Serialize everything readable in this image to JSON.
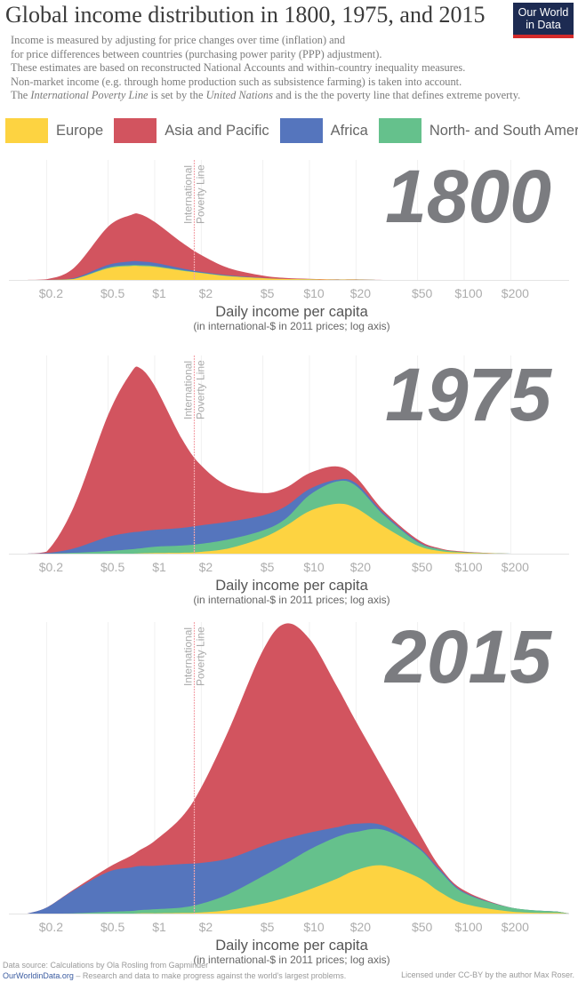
{
  "header": {
    "title": "Global income distribution in 1800, 1975, and 2015",
    "logo_line1": "Our World",
    "logo_line2": "in Data",
    "subtitle_lines": [
      "Income is measured by adjusting for price changes over time (inflation) and",
      "for price differences between countries (purchasing power parity (PPP) adjustment).",
      "These estimates are based on reconstructed National Accounts and within-country inequality measures.",
      "Non-market income (e.g. through home production such as subsistence farming) is taken into account."
    ],
    "subtitle_last": {
      "p1": "The ",
      "i1": "International Poverty Line",
      "p2": " is set by the ",
      "i2": "United Nations",
      "p3": " and is the the poverty line that defines extreme poverty."
    }
  },
  "legend": [
    {
      "label": "Europe",
      "color": "#fdd341"
    },
    {
      "label": "Asia and Pacific",
      "color": "#d2545f"
    },
    {
      "label": "Africa",
      "color": "#5575bd"
    },
    {
      "label": "North- and South America",
      "color": "#65c18c"
    }
  ],
  "footer": {
    "source": "Data source: Calculations by Ola Rosling from Gapminder",
    "site": "OurWorldinData.org",
    "tagline": " – Research and data to make progress against the world's largest problems.",
    "license": "Licensed under CC-BY by the author Max Roser."
  },
  "chart_data": [
    {
      "type": "area",
      "stacked": true,
      "title": "1800",
      "xlabel": "Daily income per capita",
      "xsubtitle": "(in international-$ in 2011 prices; log axis)",
      "xscale": "log",
      "xticks": [
        0.2,
        0.5,
        1,
        2,
        5,
        10,
        20,
        50,
        100,
        200
      ],
      "xtick_labels": [
        "$0.2",
        "$0.5",
        "$1",
        "$2",
        "$5",
        "$10",
        "$20",
        "$50",
        "$100",
        "$200"
      ],
      "poverty_line": {
        "x": 1.9,
        "label_line1": "International",
        "label_line2": "Poverty Line"
      },
      "x": [
        0.15,
        0.2,
        0.3,
        0.5,
        0.7,
        0.8,
        1,
        1.5,
        2,
        3,
        5,
        7,
        10,
        15,
        20,
        30,
        50,
        70,
        100,
        200,
        400
      ],
      "series": [
        {
          "name": "Europe",
          "values": [
            0,
            0,
            0.3,
            4.0,
            4.8,
            4.8,
            4.5,
            3.2,
            2.4,
            1.3,
            0.6,
            0.3,
            0.2,
            0.1,
            0.1,
            0,
            0,
            0,
            0,
            0,
            0
          ]
        },
        {
          "name": "North- and South America",
          "values": [
            0,
            0,
            0.1,
            0.3,
            0.3,
            0.3,
            0.3,
            0.2,
            0.1,
            0.1,
            0,
            0,
            0,
            0,
            0,
            0,
            0,
            0,
            0,
            0,
            0
          ]
        },
        {
          "name": "Africa",
          "values": [
            0,
            0,
            0.2,
            0.9,
            1.3,
            1.3,
            1.1,
            0.6,
            0.3,
            0.2,
            0.1,
            0,
            0,
            0,
            0,
            0,
            0,
            0,
            0,
            0,
            0
          ]
        },
        {
          "name": "Asia and Pacific",
          "values": [
            0,
            0.2,
            3.5,
            13.2,
            16.0,
            16.3,
            14.1,
            8.9,
            5.8,
            2.5,
            0.8,
            0.4,
            0.2,
            0.1,
            0.1,
            0,
            0,
            0,
            0,
            0,
            0
          ]
        }
      ]
    },
    {
      "type": "area",
      "stacked": true,
      "title": "1975",
      "xlabel": "Daily income per capita",
      "xsubtitle": "(in international-$ in 2011 prices; log axis)",
      "xscale": "log",
      "xticks": [
        0.2,
        0.5,
        1,
        2,
        5,
        10,
        20,
        50,
        100,
        200
      ],
      "xtick_labels": [
        "$0.2",
        "$0.5",
        "$1",
        "$2",
        "$5",
        "$10",
        "$20",
        "$50",
        "$100",
        "$200"
      ],
      "poverty_line": {
        "x": 1.9,
        "label_line1": "International",
        "label_line2": "Poverty Line"
      },
      "x": [
        0.15,
        0.2,
        0.3,
        0.5,
        0.7,
        0.8,
        1,
        1.5,
        2,
        3,
        5,
        7,
        10,
        15,
        20,
        30,
        50,
        70,
        100,
        200,
        400
      ],
      "series": [
        {
          "name": "Europe",
          "values": [
            0,
            0,
            0,
            0,
            0,
            0.1,
            0.2,
            0.3,
            0.6,
            1.8,
            5.5,
            9.5,
            14.7,
            17.2,
            15.7,
            9.5,
            2.8,
            0.9,
            0.3,
            0,
            0
          ]
        },
        {
          "name": "North- and South America",
          "values": [
            0,
            0,
            0.3,
            0.9,
            1.5,
            1.7,
            2.2,
            2.5,
            2.8,
            3.1,
            2.5,
            2.5,
            5.5,
            7.7,
            7.7,
            4.0,
            1.2,
            0.6,
            0.2,
            0,
            0
          ]
        },
        {
          "name": "Africa",
          "values": [
            0,
            0.2,
            1.5,
            4.9,
            5.8,
            5.8,
            5.8,
            6.1,
            6.4,
            6.1,
            5.2,
            4.3,
            2.1,
            0.6,
            0.9,
            0.6,
            0.3,
            0,
            0,
            0,
            0
          ]
        },
        {
          "name": "Asia and Pacific",
          "values": [
            0,
            0.5,
            14.4,
            42.1,
            55.0,
            56.5,
            49.7,
            30.7,
            20.6,
            12.3,
            7.7,
            6.4,
            5.5,
            4.6,
            2.1,
            0.9,
            0.6,
            0.3,
            0.2,
            0,
            0
          ]
        }
      ]
    },
    {
      "type": "area",
      "stacked": true,
      "title": "2015",
      "xlabel": "Daily income per capita",
      "xsubtitle": "(in international-$ in 2011 prices; log axis)",
      "xscale": "log",
      "xticks": [
        0.2,
        0.5,
        1,
        2,
        5,
        10,
        20,
        50,
        100,
        200
      ],
      "xtick_labels": [
        "$0.2",
        "$0.5",
        "$1",
        "$2",
        "$5",
        "$10",
        "$20",
        "$50",
        "$100",
        "$200"
      ],
      "poverty_line": {
        "x": 1.9,
        "label_line1": "International",
        "label_line2": "Poverty Line"
      },
      "x": [
        0.15,
        0.2,
        0.3,
        0.5,
        0.7,
        0.8,
        1,
        1.5,
        2,
        3,
        5,
        7,
        10,
        15,
        20,
        30,
        50,
        70,
        100,
        200,
        400
      ],
      "series": [
        {
          "name": "Europe",
          "values": [
            0,
            0,
            0,
            0,
            0,
            0.1,
            0.1,
            0.2,
            0.4,
            1.2,
            3.4,
            5.5,
            8.3,
            12.0,
            15.0,
            16.6,
            12.6,
            7.4,
            3.4,
            0.7,
            0.2
          ]
        },
        {
          "name": "North- and South America",
          "values": [
            0,
            0,
            0.1,
            0.6,
            0.9,
            1.1,
            1.4,
            1.9,
            3.0,
            5.5,
            9.5,
            11.7,
            13.8,
            14.4,
            13.2,
            12.3,
            10.1,
            7.1,
            3.7,
            1.4,
            0.5
          ]
        },
        {
          "name": "Africa",
          "values": [
            0,
            2.1,
            7.9,
            13.8,
            15.0,
            15.2,
            15.0,
            15.0,
            14.1,
            12.3,
            10.4,
            8.6,
            5.8,
            3.4,
            2.8,
            1.5,
            0.6,
            0.6,
            0.3,
            0,
            0
          ]
        },
        {
          "name": "Asia and Pacific",
          "values": [
            0,
            0,
            0.3,
            1.5,
            4.0,
            5.5,
            8.6,
            16.3,
            26.1,
            44.2,
            67.5,
            74.3,
            66.9,
            48.8,
            35.3,
            19.3,
            5.5,
            0.9,
            0.6,
            0,
            0
          ]
        }
      ]
    }
  ]
}
